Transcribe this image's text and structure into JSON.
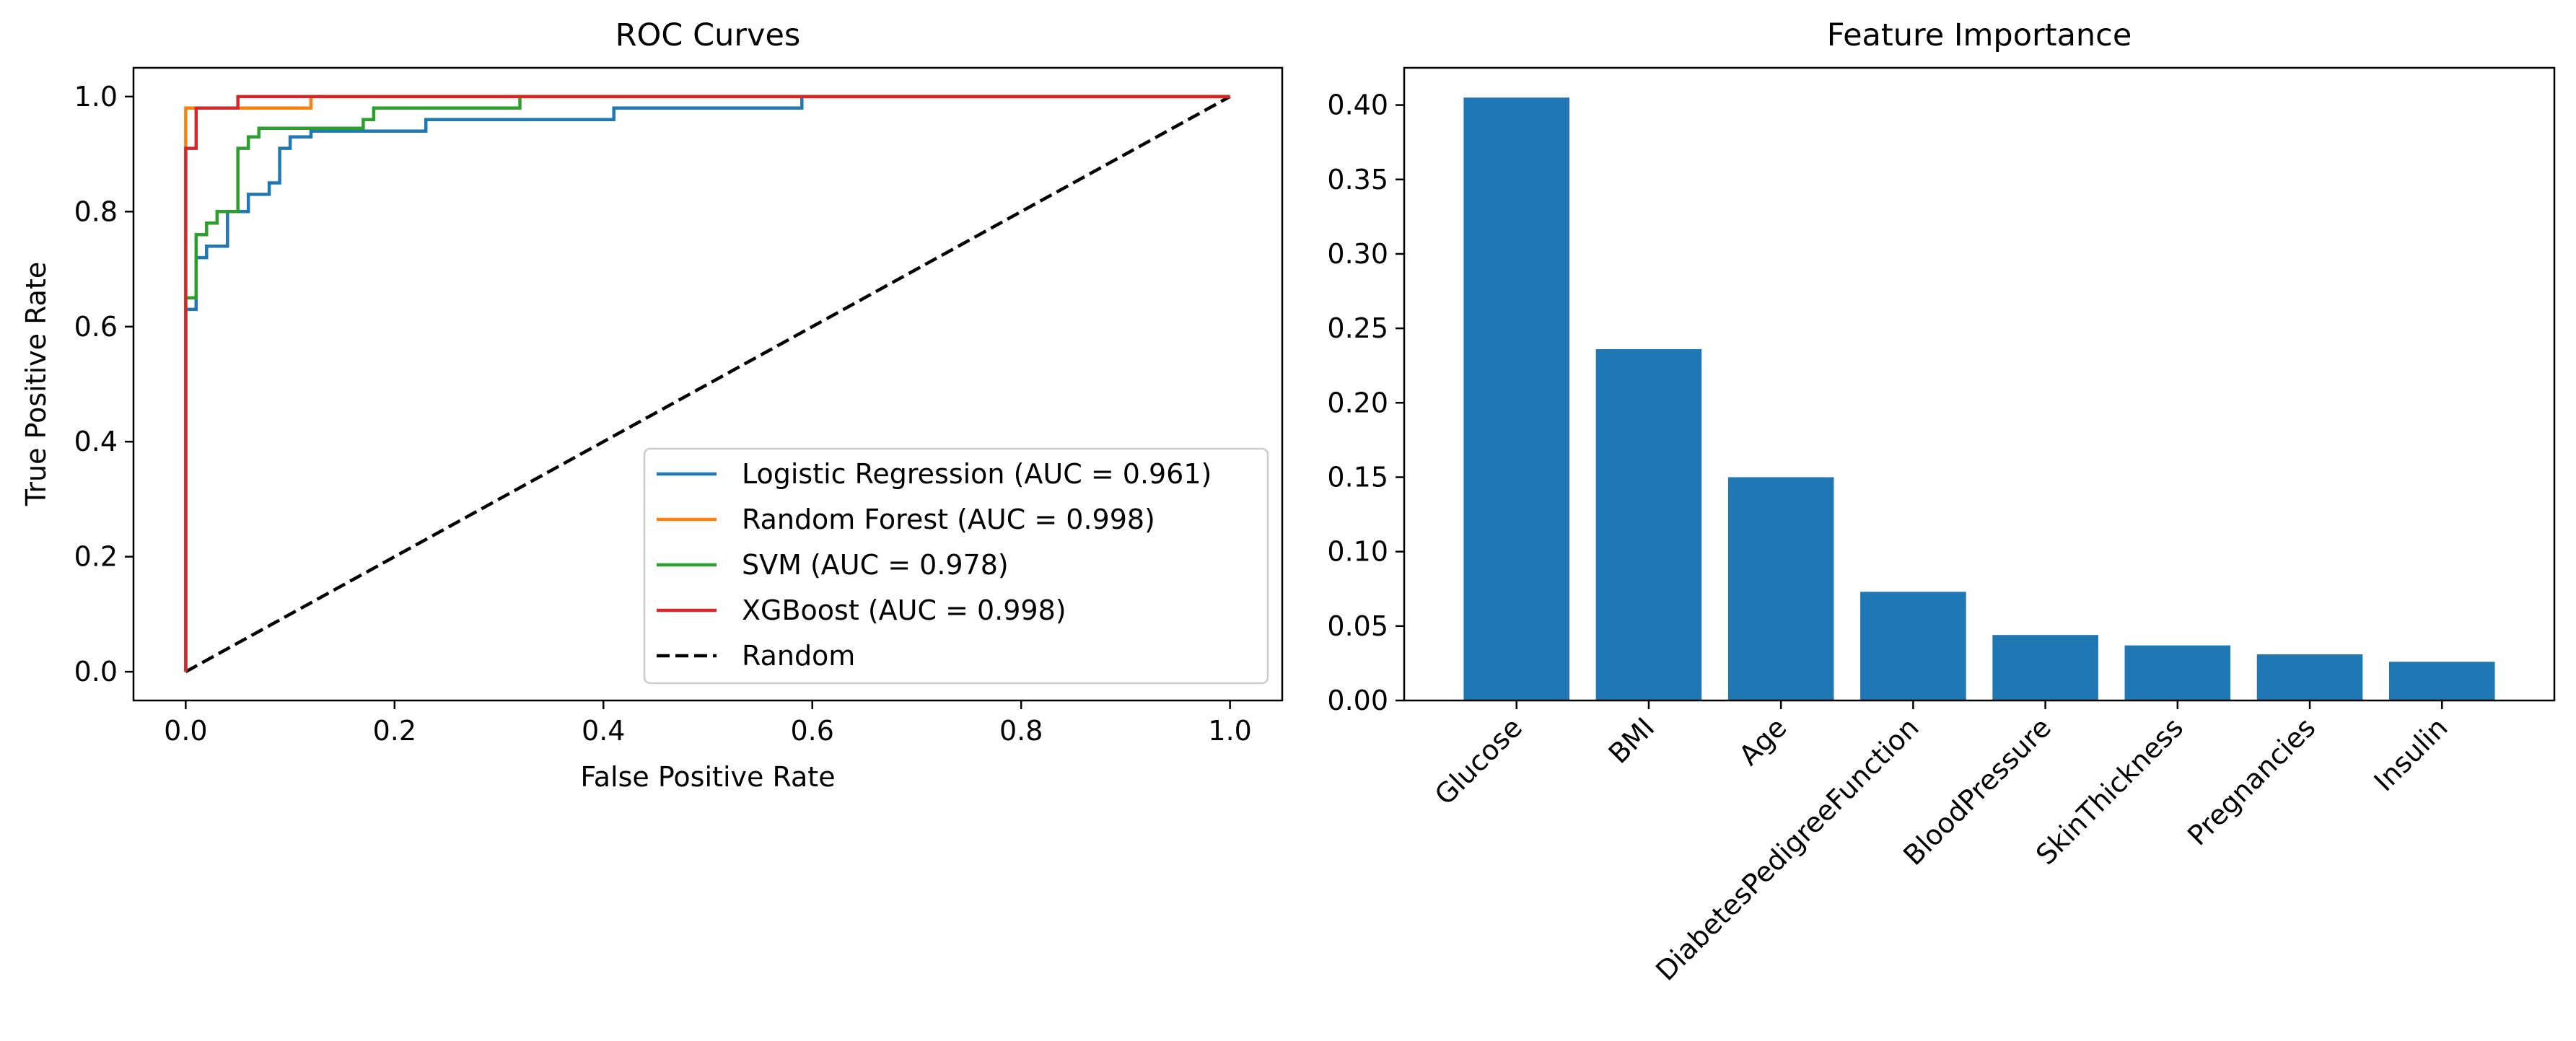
{
  "chart_data": [
    {
      "type": "line",
      "title": "ROC Curves",
      "xlabel": "False Positive Rate",
      "ylabel": "True Positive Rate",
      "xlim": [
        -0.05,
        1.05
      ],
      "ylim": [
        -0.05,
        1.05
      ],
      "xticks": [
        "0.0",
        "0.2",
        "0.4",
        "0.6",
        "0.8",
        "1.0"
      ],
      "yticks": [
        "0.0",
        "0.2",
        "0.4",
        "0.6",
        "0.8",
        "1.0"
      ],
      "grid": false,
      "legend": "lower-right",
      "series": [
        {
          "name": "Logistic Regression (AUC = 0.961)",
          "color": "#1f77b4",
          "x": [
            0,
            0,
            0.01,
            0.01,
            0.02,
            0.02,
            0.04,
            0.04,
            0.06,
            0.06,
            0.08,
            0.08,
            0.09,
            0.09,
            0.1,
            0.1,
            0.12,
            0.12,
            0.23,
            0.23,
            0.41,
            0.41,
            0.59,
            0.59,
            1.0
          ],
          "y": [
            0,
            0.63,
            0.63,
            0.72,
            0.72,
            0.74,
            0.74,
            0.8,
            0.8,
            0.83,
            0.83,
            0.85,
            0.85,
            0.91,
            0.91,
            0.93,
            0.93,
            0.94,
            0.94,
            0.96,
            0.96,
            0.98,
            0.98,
            1.0,
            1.0
          ]
        },
        {
          "name": "Random Forest (AUC = 0.998)",
          "color": "#ff7f0e",
          "x": [
            0,
            0,
            0.12,
            0.12,
            1.0
          ],
          "y": [
            0,
            0.98,
            0.98,
            1.0,
            1.0
          ]
        },
        {
          "name": "SVM (AUC = 0.978)",
          "color": "#2ca02c",
          "x": [
            0,
            0,
            0.01,
            0.01,
            0.02,
            0.02,
            0.03,
            0.03,
            0.05,
            0.05,
            0.06,
            0.06,
            0.07,
            0.07,
            0.17,
            0.17,
            0.18,
            0.18,
            0.32,
            0.32,
            1.0
          ],
          "y": [
            0,
            0.65,
            0.65,
            0.76,
            0.76,
            0.78,
            0.78,
            0.8,
            0.8,
            0.91,
            0.91,
            0.93,
            0.93,
            0.945,
            0.945,
            0.96,
            0.96,
            0.98,
            0.98,
            1.0,
            1.0
          ]
        },
        {
          "name": "XGBoost (AUC = 0.998)",
          "color": "#d62728",
          "x": [
            0,
            0,
            0.01,
            0.01,
            0.05,
            0.05,
            1.0
          ],
          "y": [
            0,
            0.91,
            0.91,
            0.98,
            0.98,
            1.0,
            1.0
          ]
        },
        {
          "name": "Random",
          "color": "#000000",
          "dashed": true,
          "x": [
            0,
            1
          ],
          "y": [
            0,
            1
          ]
        }
      ]
    },
    {
      "type": "bar",
      "title": "Feature Importance",
      "xlabel": "",
      "ylabel": "",
      "color": "#1f77b4",
      "categories": [
        "Glucose",
        "BMI",
        "Age",
        "DiabetesPedigreeFunction",
        "BloodPressure",
        "SkinThickness",
        "Pregnancies",
        "Insulin"
      ],
      "values": [
        0.405,
        0.236,
        0.15,
        0.073,
        0.044,
        0.037,
        0.031,
        0.026
      ],
      "ylim": [
        0,
        0.425
      ],
      "yticks": [
        "0.00",
        "0.05",
        "0.10",
        "0.15",
        "0.20",
        "0.25",
        "0.30",
        "0.35",
        "0.40"
      ],
      "grid": false
    }
  ]
}
